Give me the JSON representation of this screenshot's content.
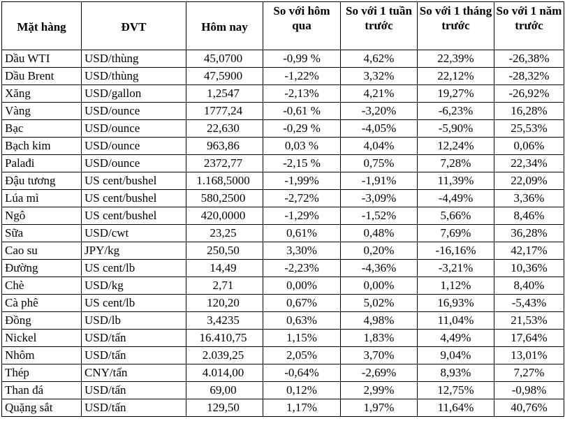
{
  "headers": [
    "Mặt hàng",
    "ĐVT",
    "Hôm nay",
    "So với hôm qua",
    "So với 1 tuần trước",
    "So với 1 tháng trước",
    "So với 1 năm trước"
  ],
  "rows": [
    [
      "Dầu WTI",
      "USD/thùng",
      "45,0700",
      "-0,99 %",
      "4,62%",
      "22,39%",
      "-26,38%"
    ],
    [
      "Dầu Brent",
      "USD/thùng",
      "47,5900",
      "-1,22%",
      "3,32%",
      "22,12%",
      "-28,32%"
    ],
    [
      "Xăng",
      "USD/gallon",
      "1,2547",
      "-2,13%",
      "4,21%",
      "19,27%",
      "-26,92%"
    ],
    [
      "Vàng",
      "USD/ounce",
      "1777,24",
      "-0,61 %",
      "-3,20%",
      "-6,23%",
      "16,28%"
    ],
    [
      "Bạc",
      "USD/ounce",
      "22,630",
      "-0,29 %",
      "-4,05%",
      "-5,90%",
      "25,53%"
    ],
    [
      "Bạch kim",
      "USD/ounce",
      "963,86",
      "0,03 %",
      "4,04%",
      "12,24%",
      "0,06%"
    ],
    [
      "Palađi",
      "USD/ounce",
      "2372,77",
      "-2,15 %",
      "0,75%",
      "7,28%",
      "22,34%"
    ],
    [
      "Đậu tương",
      "US cent/bushel",
      "1.168,5000",
      "-1,99%",
      "-1,91%",
      "11,39%",
      "22,09%"
    ],
    [
      "Lúa mì",
      "US cent/bushel",
      "580,2500",
      "-2,72%",
      "-3,09%",
      "-4,49%",
      "3,36%"
    ],
    [
      "Ngô",
      "US cent/bushel",
      "420,0000",
      "-1,29%",
      "-1,52%",
      "5,66%",
      "8,46%"
    ],
    [
      "Sữa",
      "USD/cwt",
      "23,25",
      "0,61%",
      "0,48%",
      "7,69%",
      "36,28%"
    ],
    [
      "Cao su",
      "JPY/kg",
      "250,50",
      "3,30%",
      "0,20%",
      "-16,16%",
      "42,17%"
    ],
    [
      "Đường",
      "US cent/lb",
      "14,49",
      "-2,23%",
      "-4,36%",
      "-3,21%",
      "10,36%"
    ],
    [
      "Chè",
      "USD/kg",
      "2,71",
      "0,00%",
      "0,00%",
      "1,12%",
      "8,40%"
    ],
    [
      "Cà phê",
      "US cent/lb",
      "120,20",
      "0,67%",
      "5,02%",
      "16,93%",
      "-5,43%"
    ],
    [
      "Đồng",
      "USD/lb",
      "3,4235",
      "0,63%",
      "4,98%",
      "11,04%",
      "21,53%"
    ],
    [
      "Nickel",
      "USD/tấn",
      "16.410,75",
      "1,15%",
      "1,83%",
      "4,49%",
      "17,64%"
    ],
    [
      "Nhôm",
      "USD/tấn",
      "2.039,25",
      "2,05%",
      "3,70%",
      "9,04%",
      "13,01%"
    ],
    [
      "Thép",
      "CNY/tấn",
      "4.014,00",
      "-0,64%",
      "-2,69%",
      "8,93%",
      "7,27%"
    ],
    [
      "Than đá",
      "USD/tấn",
      "69,00",
      "0,12%",
      "2,99%",
      "12,75%",
      "-0,98%"
    ],
    [
      "Quặng sắt",
      "USD/tấn",
      "129,50",
      "1,17%",
      "1,97%",
      "11,64%",
      "40,76%"
    ]
  ]
}
